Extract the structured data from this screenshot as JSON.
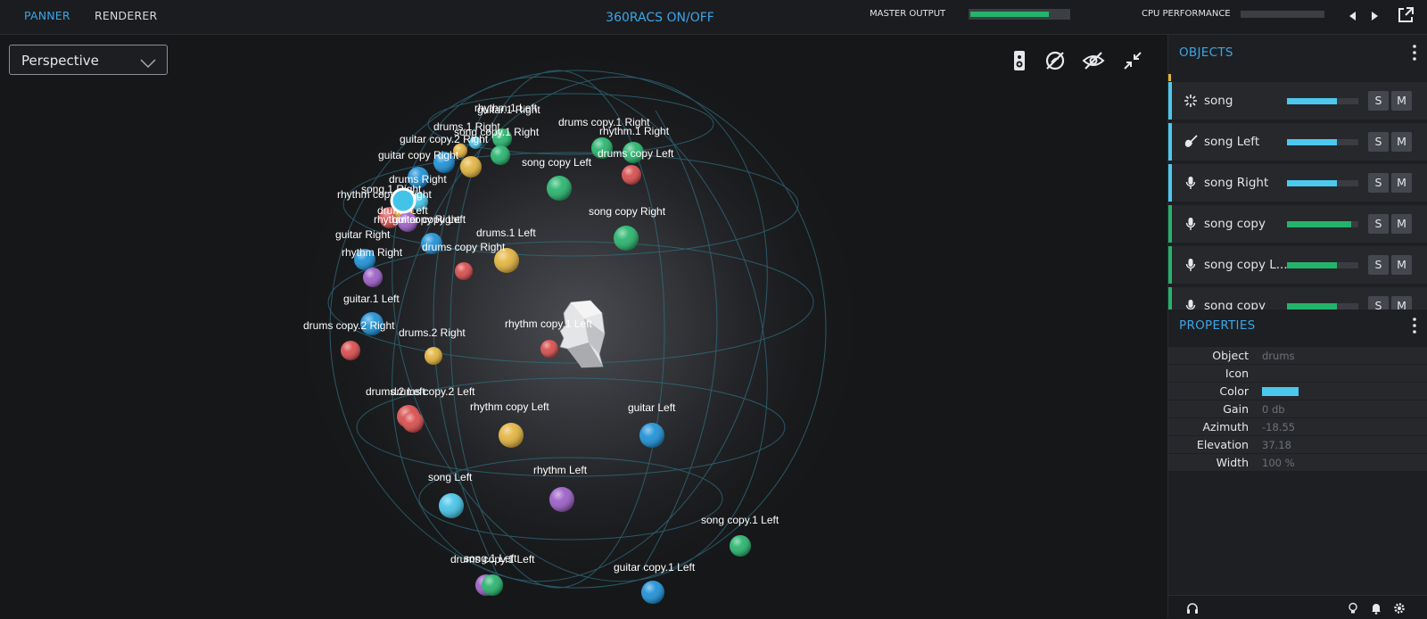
{
  "tabs": [
    {
      "label": "PANNER",
      "active": true
    },
    {
      "label": "RENDERER",
      "active": false
    }
  ],
  "toggle_label": "360RACS ON/OFF",
  "master_output": {
    "label": "MASTER OUTPUT",
    "level": 0.8
  },
  "cpu": {
    "label": "CPU PERFORMANCE",
    "level": 0.0
  },
  "icons": {
    "prev": "triangle-left-icon",
    "next": "triangle-right-icon",
    "export": "external-window-icon",
    "speaker": "speaker-icon",
    "mute_source": "crossed-circle-icon",
    "hide": "eye-off-icon",
    "collapse": "collapse-arrows-icon"
  },
  "view": {
    "selected": "Perspective"
  },
  "scene_objects": [
    {
      "label": "rhythm.1 Left",
      "color": "#24b36b"
    },
    {
      "label": "guitar.1 Right",
      "color": "#42c3e8"
    },
    {
      "label": "drums.1 Right",
      "color": "#e3b33c"
    },
    {
      "label": "song copy.1 Right",
      "color": "#24b36b"
    },
    {
      "label": "drums copy.1 Right",
      "color": "#24b36b"
    },
    {
      "label": "rhythm.1 Right",
      "color": "#24b36b"
    },
    {
      "label": "guitar copy.2 Right",
      "color": "#e3b33c"
    },
    {
      "label": "song copy Left",
      "color": "#24b36b"
    },
    {
      "label": "guitar copy Right",
      "color": "#1a8fd6"
    },
    {
      "label": "drums copy Left",
      "color": "#d84a4a"
    },
    {
      "label": "drums Right",
      "color": "#1a8fd6"
    },
    {
      "label": "song.1 Right",
      "color": "#42c3e8"
    },
    {
      "label": "rhythm copy.1 Right",
      "color": "#d84a4a"
    },
    {
      "label": "drums Left",
      "color": "#e3b33c"
    },
    {
      "label": "rhythm copy Right",
      "color": "#9a5cc6"
    },
    {
      "label": "guitar copy Left",
      "color": "#1a8fd6"
    },
    {
      "label": "song copy Right",
      "color": "#24b36b"
    },
    {
      "label": "guitar Right",
      "color": "#1a8fd6"
    },
    {
      "label": "drums.1 Left",
      "color": "#e3b33c"
    },
    {
      "label": "drums copy Right",
      "color": "#d84a4a"
    },
    {
      "label": "rhythm Right",
      "color": "#9a5cc6"
    },
    {
      "label": "guitar.1 Left",
      "color": "#1a8fd6"
    },
    {
      "label": "drums copy.2 Right",
      "color": "#d84a4a"
    },
    {
      "label": "drums.2 Right",
      "color": "#e3b33c"
    },
    {
      "label": "rhythm copy.1 Left",
      "color": "#d84a4a"
    },
    {
      "label": "drums.2 Left",
      "color": "#d84a4a"
    },
    {
      "label": "drums copy.2 Left",
      "color": "#d84a4a"
    },
    {
      "label": "rhythm copy Left",
      "color": "#e3b33c"
    },
    {
      "label": "guitar Left",
      "color": "#1a8fd6"
    },
    {
      "label": "song Left",
      "color": "#42c3e8"
    },
    {
      "label": "rhythm Left",
      "color": "#9a5cc6"
    },
    {
      "label": "song copy.1 Left",
      "color": "#24b36b"
    },
    {
      "label": "drums copy.1 Left",
      "color": "#9a5cc6"
    },
    {
      "label": "song.1 Left",
      "color": "#24b36b"
    },
    {
      "label": "guitar copy.1 Left",
      "color": "#1a8fd6"
    }
  ],
  "objects_panel": {
    "title": "OBJECTS",
    "rows": [
      {
        "name": "song",
        "icon": "sparkle-icon",
        "color": "#4cc8ee",
        "gain": 0.7,
        "solo": "S",
        "mute": "M"
      },
      {
        "name": "song Left",
        "icon": "guitar-icon",
        "color": "#4cc8ee",
        "gain": 0.7,
        "solo": "S",
        "mute": "M"
      },
      {
        "name": "song Right",
        "icon": "microphone-icon",
        "color": "#4cc8ee",
        "gain": 0.7,
        "solo": "S",
        "mute": "M"
      },
      {
        "name": "song copy",
        "icon": "microphone-icon",
        "color": "#24b36b",
        "gain": 0.9,
        "solo": "S",
        "mute": "M"
      },
      {
        "name": "song copy L...",
        "icon": "microphone-icon",
        "color": "#24b36b",
        "gain": 0.7,
        "solo": "S",
        "mute": "M"
      },
      {
        "name": "song copy",
        "icon": "microphone-icon",
        "color": "#24b36b",
        "gain": 0.7,
        "solo": "S",
        "mute": "M"
      }
    ]
  },
  "properties_panel": {
    "title": "PROPERTIES",
    "rows": [
      {
        "key": "Object",
        "value": "drums"
      },
      {
        "key": "Icon",
        "value": ""
      },
      {
        "key": "Color",
        "value": "",
        "swatch": "#4cc8ee"
      },
      {
        "key": "Gain",
        "value": "0 db"
      },
      {
        "key": "Azimuth",
        "value": "-18.55"
      },
      {
        "key": "Elevation",
        "value": "37.18"
      },
      {
        "key": "Width",
        "value": "100 %"
      }
    ]
  },
  "footer_icons": [
    "headphones-icon",
    "lightbulb-icon",
    "bell-icon",
    "gear-icon"
  ]
}
